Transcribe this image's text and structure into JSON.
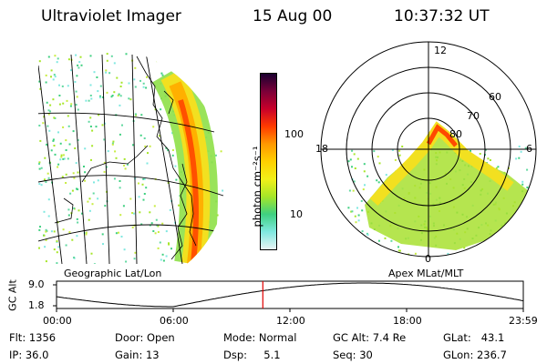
{
  "header": {
    "instrument": "Ultraviolet Imager",
    "date": "15 Aug 00",
    "time": "10:37:32 UT"
  },
  "colorbar": {
    "unit": "photon cm⁻²s⁻¹",
    "ticks": [
      "100",
      "10"
    ],
    "colors": [
      "#e8f4f4",
      "#7fe8e0",
      "#3fd080",
      "#a6e628",
      "#f2f018",
      "#ffd000",
      "#ff9800",
      "#ff3a00",
      "#c8002a",
      "#7a0038",
      "#1a0030"
    ]
  },
  "panels": {
    "left_label": "Geographic Lat/Lon",
    "right_label": "Apex MLat/MLT"
  },
  "polar": {
    "mlt_labels": {
      "top": "12",
      "left": "18",
      "right": "6",
      "bottom": "0"
    },
    "lat_labels": [
      "60",
      "70",
      "80"
    ]
  },
  "gc_alt": {
    "y_title": "GC Alt",
    "y_ticks": [
      "9.0",
      "1.8"
    ],
    "x_ticks": [
      "00:00",
      "06:00",
      "12:00",
      "18:00",
      "23:59"
    ],
    "current_time_fraction": 0.442,
    "line_color": "#000000",
    "marker_color": "#e00000"
  },
  "status": {
    "flt": "Flt: 1356",
    "ip": "IP: 36.0",
    "door": "Door: Open",
    "gain": "Gain: 13",
    "mode": "Mode: Normal",
    "dsp": "Dsp:     5.1",
    "gcalt": "GC Alt: 7.4 Re",
    "seq": "Seq: 30",
    "glat": "GLat:   43.1",
    "glon": "GLon: 236.7"
  }
}
